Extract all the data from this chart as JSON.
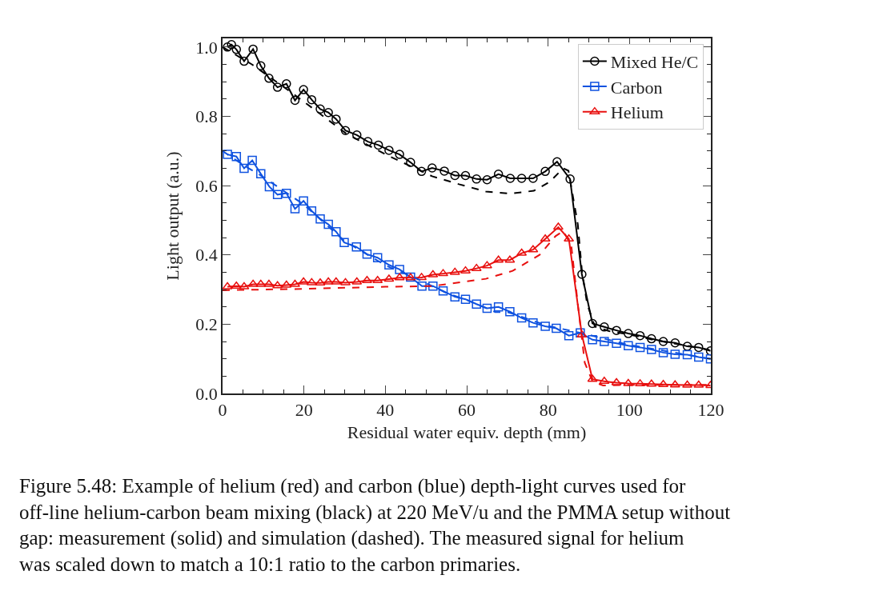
{
  "chart_data": {
    "type": "line",
    "xlabel": "Residual water equiv. depth (mm)",
    "ylabel": "Light output (a.u.)",
    "xlim": [
      0,
      120
    ],
    "xticks": [
      0,
      20,
      40,
      60,
      80,
      100,
      120
    ],
    "ylim": [
      0,
      1.025
    ],
    "yticks": [
      {
        "value": 0,
        "label": "0.0"
      },
      0.2,
      0.4,
      0.6,
      0.8,
      {
        "value": 1.0,
        "label": "1.0"
      }
    ],
    "legend": "top right",
    "series": [
      {
        "name": "Mixed He/C",
        "color": "#000000",
        "marker": "circle",
        "line_style": "solid",
        "x": [
          1.2,
          2.2,
          3.4,
          5.3,
          7.5,
          9.4,
          11.4,
          13.5,
          15.7,
          17.8,
          19.9,
          21.9,
          24.0,
          26.0,
          27.9,
          30.2,
          33.0,
          35.7,
          38.3,
          40.9,
          43.5,
          46.2,
          48.9,
          51.5,
          54.5,
          57.1,
          59.7,
          62.4,
          65.0,
          67.8,
          70.7,
          73.5,
          76.3,
          79.3,
          82.2,
          85.4,
          88.3,
          90.9,
          93.8,
          96.8,
          99.7,
          102.6,
          105.4,
          108.3,
          111.2,
          114.2,
          117.0,
          119.9
        ],
        "values": [
          1.0,
          1.007,
          0.993,
          0.959,
          0.994,
          0.946,
          0.91,
          0.884,
          0.894,
          0.846,
          0.877,
          0.848,
          0.821,
          0.811,
          0.792,
          0.759,
          0.746,
          0.727,
          0.717,
          0.702,
          0.69,
          0.667,
          0.641,
          0.651,
          0.642,
          0.629,
          0.629,
          0.619,
          0.617,
          0.633,
          0.621,
          0.621,
          0.621,
          0.641,
          0.669,
          0.619,
          0.344,
          0.202,
          0.192,
          0.182,
          0.173,
          0.167,
          0.158,
          0.15,
          0.146,
          0.136,
          0.133,
          0.123
        ]
      },
      {
        "name": "Carbon",
        "color": "#0f52e0",
        "marker": "square",
        "line_style": "solid",
        "x": [
          1.2,
          3.4,
          5.3,
          7.3,
          9.4,
          11.5,
          13.5,
          15.7,
          17.8,
          19.9,
          21.9,
          24.0,
          26.0,
          27.9,
          29.9,
          32.9,
          35.5,
          38.1,
          40.9,
          43.5,
          46.2,
          49.0,
          51.7,
          54.2,
          57.1,
          59.7,
          62.4,
          65.0,
          67.8,
          70.6,
          73.5,
          76.3,
          79.3,
          82.0,
          85.1,
          87.9,
          90.9,
          93.8,
          96.8,
          99.7,
          102.6,
          105.4,
          108.3,
          111.2,
          114.2,
          117.0,
          119.9
        ],
        "values": [
          0.69,
          0.684,
          0.65,
          0.673,
          0.634,
          0.597,
          0.574,
          0.578,
          0.533,
          0.556,
          0.527,
          0.504,
          0.488,
          0.467,
          0.436,
          0.423,
          0.402,
          0.392,
          0.371,
          0.358,
          0.336,
          0.31,
          0.31,
          0.296,
          0.279,
          0.272,
          0.258,
          0.246,
          0.25,
          0.236,
          0.218,
          0.204,
          0.194,
          0.188,
          0.167,
          0.175,
          0.155,
          0.15,
          0.145,
          0.138,
          0.133,
          0.127,
          0.118,
          0.113,
          0.112,
          0.105,
          0.1
        ]
      },
      {
        "name": "Helium",
        "color": "#e8100f",
        "marker": "triangle",
        "line_style": "solid",
        "x": [
          1.2,
          3.4,
          5.3,
          7.5,
          9.4,
          11.4,
          13.5,
          15.7,
          17.8,
          19.9,
          21.9,
          24.0,
          26.0,
          27.9,
          30.2,
          33.0,
          35.5,
          38.1,
          40.9,
          43.5,
          46.2,
          48.9,
          51.7,
          54.2,
          57.1,
          59.7,
          62.4,
          65.0,
          67.8,
          70.6,
          73.5,
          76.3,
          79.3,
          82.5,
          85.1,
          88.3,
          90.9,
          93.8,
          96.8,
          99.7,
          102.6,
          105.4,
          108.3,
          111.2,
          114.2,
          117.0,
          119.9
        ],
        "values": [
          0.308,
          0.31,
          0.308,
          0.315,
          0.315,
          0.315,
          0.311,
          0.313,
          0.315,
          0.322,
          0.32,
          0.319,
          0.322,
          0.322,
          0.32,
          0.322,
          0.326,
          0.326,
          0.33,
          0.334,
          0.334,
          0.335,
          0.343,
          0.346,
          0.35,
          0.354,
          0.361,
          0.369,
          0.385,
          0.385,
          0.405,
          0.415,
          0.446,
          0.48,
          0.446,
          0.169,
          0.041,
          0.035,
          0.031,
          0.029,
          0.028,
          0.027,
          0.026,
          0.025,
          0.024,
          0.024,
          0.023
        ]
      },
      {
        "color": "#000000",
        "marker": "none",
        "line_style": "dashed",
        "x": [
          0,
          7.2,
          16.9,
          24,
          30.4,
          40.4,
          51.5,
          58.1,
          64.7,
          70.6,
          76.5,
          80.4,
          83.7,
          85,
          87.3,
          88.3,
          89.6,
          91.5,
          95,
          100,
          105,
          110,
          115,
          120
        ],
        "values": [
          1.0,
          0.95,
          0.869,
          0.807,
          0.75,
          0.688,
          0.627,
          0.604,
          0.583,
          0.577,
          0.585,
          0.611,
          0.65,
          0.643,
          0.488,
          0.355,
          0.258,
          0.193,
          0.18,
          0.17,
          0.157,
          0.146,
          0.136,
          0.125
        ]
      },
      {
        "color": "#0f52e0",
        "marker": "none",
        "line_style": "dashed",
        "x": [
          0,
          5,
          10,
          20,
          30,
          40,
          48,
          55,
          60,
          67,
          70,
          80,
          88,
          100,
          110,
          120
        ],
        "values": [
          0.7,
          0.66,
          0.625,
          0.545,
          0.44,
          0.37,
          0.33,
          0.29,
          0.27,
          0.235,
          0.235,
          0.195,
          0.175,
          0.14,
          0.12,
          0.1
        ]
      },
      {
        "color": "#e8100f",
        "marker": "none",
        "line_style": "dashed",
        "x": [
          0,
          20,
          40,
          51.5,
          64.7,
          71.3,
          77.9,
          81.8,
          83.7,
          85.7,
          87.3,
          89,
          90.9,
          93.5,
          100,
          110,
          120
        ],
        "values": [
          0.298,
          0.302,
          0.308,
          0.31,
          0.331,
          0.354,
          0.4,
          0.454,
          0.469,
          0.427,
          0.258,
          0.089,
          0.035,
          0.023,
          0.025,
          0.025,
          0.025
        ]
      }
    ],
    "annotations": [
      "Figure 5.48: Example of helium (red) and carbon (blue) depth-light curves used for off-line helium-carbon beam mixing (black) at 220 MeV/u and the PMMA setup without gap: measurement (solid) and simulation (dashed). The measured signal for helium was scaled down to match a 10:1 ratio to the carbon primaries."
    ]
  }
}
